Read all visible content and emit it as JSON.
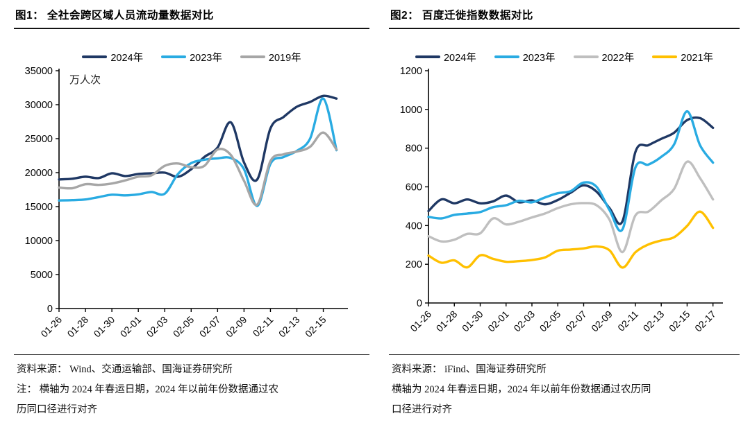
{
  "figures": [
    {
      "source_lines": [
        "资料来源： Wind、交通运输部、国海证券研究所",
        "注： 横轴为 2024 年春运日期，2024 年以前年份数据通过农",
        "历同口径进行对齐"
      ]
    },
    {
      "source_lines": [
        "资料来源： iFind、国海证券研究所",
        "横轴为 2024 年春运日期，2024 年以前年份数据通过农历同",
        "口径进行对齐"
      ]
    }
  ],
  "chart_data": [
    {
      "type": "line",
      "title": "图1：  全社会跨区域人员流动量数据对比",
      "unit_label": "万人次",
      "ylabel": "万人次",
      "xlabel": "",
      "grid": false,
      "legend_position": "top",
      "ylim": [
        0,
        35000
      ],
      "ytick_step": 5000,
      "xtick_every": 2,
      "x": [
        "01-26",
        "01-27",
        "01-28",
        "01-29",
        "01-30",
        "01-31",
        "02-01",
        "02-02",
        "02-03",
        "02-04",
        "02-05",
        "02-06",
        "02-07",
        "02-08",
        "02-09",
        "02-10",
        "02-11",
        "02-12",
        "02-13",
        "02-14",
        "02-15",
        "02-16"
      ],
      "x_tick_labels": [
        "01-26",
        "01-28",
        "01-30",
        "02-01",
        "02-03",
        "02-05",
        "02-07",
        "02-09",
        "02-11",
        "02-13",
        "02-15"
      ],
      "series": [
        {
          "name": "2024年",
          "color": "#1F3864",
          "values": [
            19000,
            19100,
            19400,
            19200,
            19900,
            19500,
            19800,
            19900,
            20000,
            19400,
            20500,
            22300,
            23700,
            27400,
            21500,
            19000,
            26500,
            28200,
            29700,
            30400,
            31300,
            30900
          ]
        },
        {
          "name": "2023年",
          "color": "#29ABE2",
          "values": [
            15900,
            15950,
            16050,
            16400,
            16750,
            16650,
            16800,
            17150,
            16900,
            19800,
            21400,
            21900,
            22100,
            22150,
            20500,
            15100,
            21300,
            22300,
            23200,
            25000,
            30900,
            23300
          ]
        },
        {
          "name": "2019年",
          "color": "#A6A6A6",
          "values": [
            17800,
            17700,
            18300,
            18200,
            18400,
            18850,
            19400,
            19600,
            21000,
            21350,
            20800,
            21000,
            23400,
            22600,
            18800,
            15300,
            21700,
            22700,
            23100,
            23800,
            25900,
            23400
          ]
        }
      ]
    },
    {
      "type": "line",
      "title": "图2：  百度迁徙指数数据对比",
      "unit_label": "",
      "ylabel": "",
      "xlabel": "",
      "grid": false,
      "legend_position": "top",
      "ylim": [
        0,
        1200
      ],
      "ytick_step": 200,
      "xtick_every": 2,
      "x": [
        "01-26",
        "01-27",
        "01-28",
        "01-29",
        "01-30",
        "01-31",
        "02-01",
        "02-02",
        "02-03",
        "02-04",
        "02-05",
        "02-06",
        "02-07",
        "02-08",
        "02-09",
        "02-10",
        "02-11",
        "02-12",
        "02-13",
        "02-14",
        "02-15",
        "02-16",
        "02-17"
      ],
      "x_tick_labels": [
        "01-26",
        "01-28",
        "01-30",
        "02-01",
        "02-03",
        "02-05",
        "02-07",
        "02-09",
        "02-11",
        "02-13",
        "02-15",
        "02-17"
      ],
      "series": [
        {
          "name": "2024年",
          "color": "#1F3864",
          "values": [
            475,
            535,
            515,
            535,
            515,
            525,
            555,
            520,
            530,
            510,
            532,
            570,
            608,
            575,
            490,
            422,
            780,
            815,
            848,
            880,
            945,
            955,
            905
          ]
        },
        {
          "name": "2023年",
          "color": "#29ABE2",
          "values": [
            445,
            437,
            455,
            462,
            470,
            495,
            505,
            528,
            520,
            545,
            567,
            578,
            622,
            600,
            480,
            380,
            700,
            715,
            755,
            820,
            990,
            815,
            725
          ]
        },
        {
          "name": "2022年",
          "color": "#BFBFBF",
          "values": [
            345,
            318,
            327,
            357,
            360,
            437,
            406,
            420,
            442,
            462,
            490,
            510,
            516,
            505,
            430,
            263,
            452,
            472,
            530,
            590,
            730,
            645,
            535
          ]
        },
        {
          "name": "2021年",
          "color": "#FFC000",
          "values": [
            245,
            208,
            220,
            184,
            246,
            228,
            213,
            216,
            222,
            235,
            270,
            276,
            282,
            292,
            272,
            183,
            262,
            302,
            323,
            340,
            398,
            472,
            388
          ]
        }
      ]
    }
  ]
}
